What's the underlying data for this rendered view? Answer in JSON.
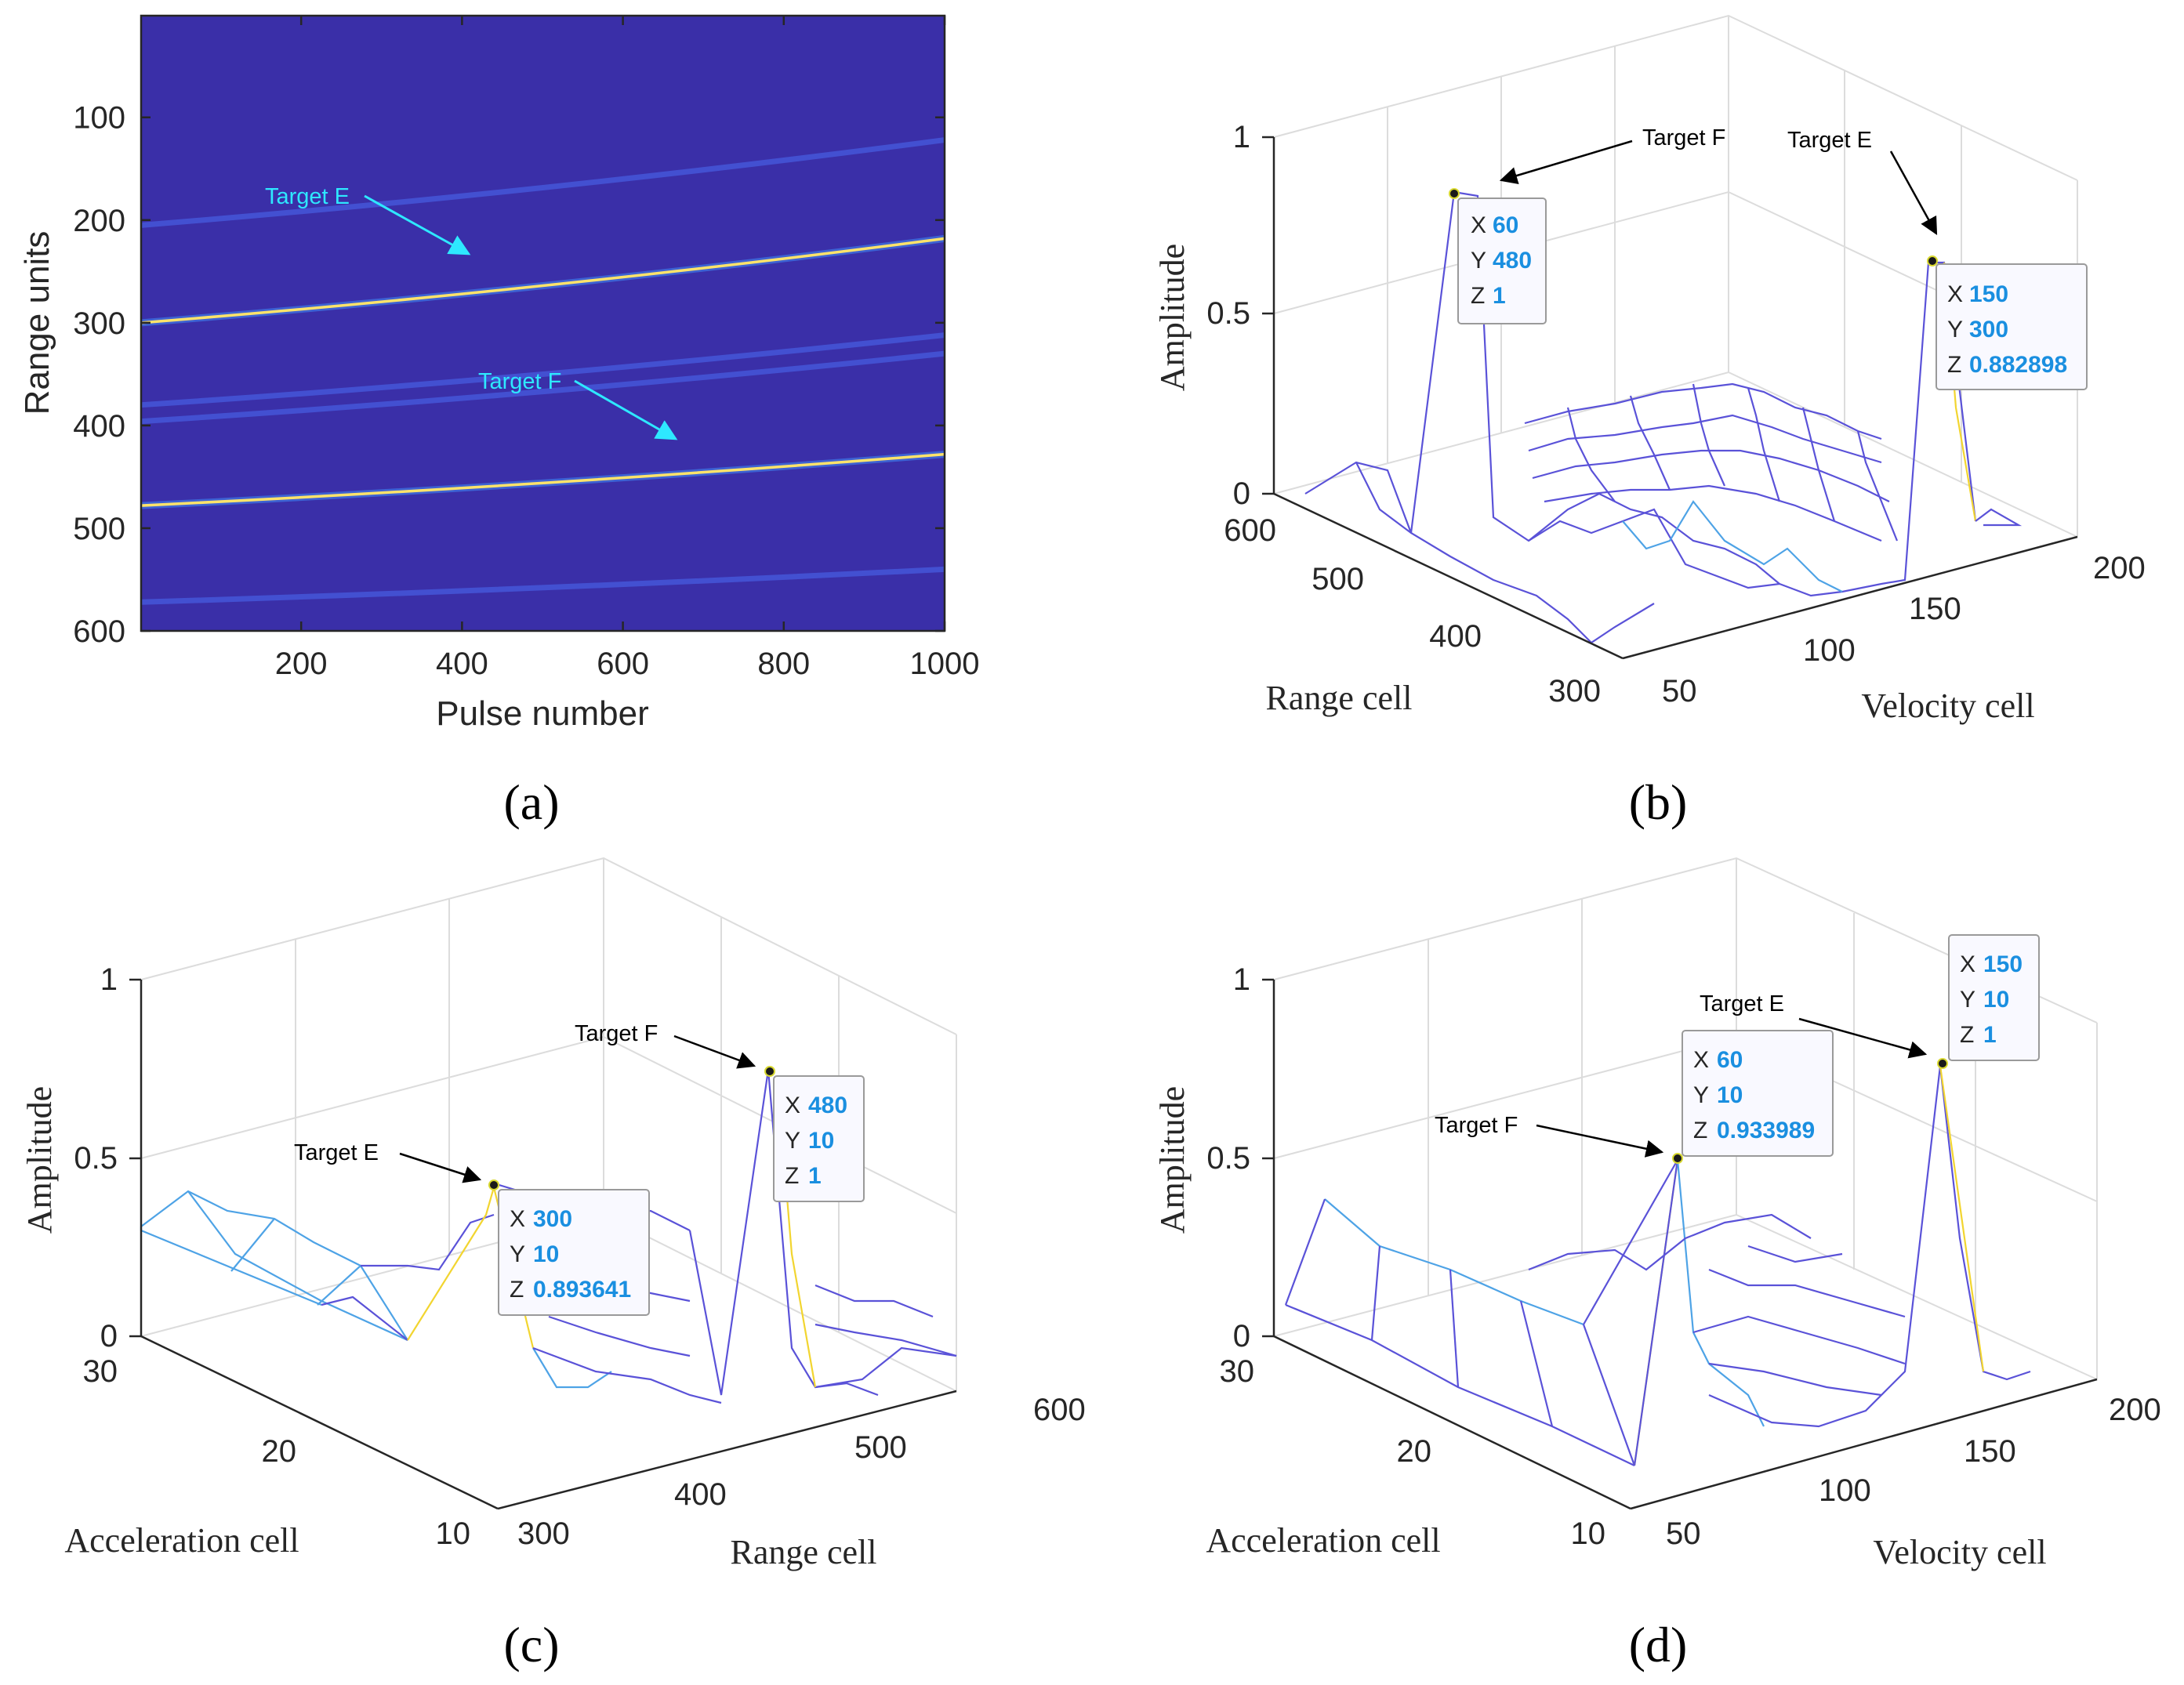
{
  "panels": {
    "a": "(a)",
    "b": "(b)",
    "c": "(c)",
    "d": "(d)"
  },
  "chart_data": [
    {
      "id": "a",
      "type": "heatmap",
      "xlabel": "Pulse number",
      "ylabel": "Range units",
      "xlim": [
        1,
        1000
      ],
      "ylim": [
        600,
        1
      ],
      "y_reversed": true,
      "x_ticks": [
        "200",
        "400",
        "600",
        "800",
        "1000"
      ],
      "y_ticks": [
        "100",
        "200",
        "300",
        "400",
        "500",
        "600"
      ],
      "background_color": "#3a2ea6",
      "tracks": [
        {
          "kind": "bright",
          "color": "#ffe36a",
          "x": [
            1,
            1000
          ],
          "y_start": 300,
          "y_end": 218
        },
        {
          "kind": "bright",
          "color": "#ffe36a",
          "x": [
            1,
            1000
          ],
          "y_start": 478,
          "y_end": 428
        },
        {
          "kind": "faint",
          "color": "#4a6cf2",
          "x": [
            1,
            1000
          ],
          "y_start": 205,
          "y_end": 122
        },
        {
          "kind": "faint",
          "color": "#4a6cf2",
          "x": [
            1,
            1000
          ],
          "y_start": 380,
          "y_end": 312
        },
        {
          "kind": "faint",
          "color": "#4a6cf2",
          "x": [
            1,
            1000
          ],
          "y_start": 396,
          "y_end": 330
        },
        {
          "kind": "faint",
          "color": "#4a6cf2",
          "x": [
            1,
            1000
          ],
          "y_start": 572,
          "y_end": 540
        }
      ],
      "annotations": [
        {
          "text": "Target E",
          "color": "#2ee8ff"
        },
        {
          "text": "Target F",
          "color": "#2ee8ff"
        }
      ]
    },
    {
      "id": "b",
      "type": "surface",
      "xlabel": "Velocity cell",
      "ylabel": "Range cell",
      "zlabel": "Amplitude",
      "x_ticks": [
        "50",
        "100",
        "150",
        "200"
      ],
      "y_ticks": [
        "300",
        "400",
        "500",
        "600"
      ],
      "z_ticks": [
        "0",
        "0.5",
        "1"
      ],
      "zlim": [
        0,
        1
      ],
      "peaks": [
        {
          "label": "Target F",
          "x": 60,
          "y": 480,
          "z": 1,
          "x_text": "60",
          "y_text": "480",
          "z_text": "1"
        },
        {
          "label": "Target E",
          "x": 150,
          "y": 300,
          "z": 0.882898,
          "x_text": "150",
          "y_text": "300",
          "z_text": "0.882898"
        }
      ]
    },
    {
      "id": "c",
      "type": "surface",
      "xlabel": "Range cell",
      "ylabel": "Acceleration cell",
      "zlabel": "Amplitude",
      "x_ticks": [
        "300",
        "400",
        "500",
        "600"
      ],
      "y_ticks": [
        "10",
        "20",
        "30"
      ],
      "z_ticks": [
        "0",
        "0.5",
        "1"
      ],
      "zlim": [
        0,
        1
      ],
      "peaks": [
        {
          "label": "Target E",
          "x": 300,
          "y": 10,
          "z": 0.893641,
          "x_text": "300",
          "y_text": "10",
          "z_text": "0.893641"
        },
        {
          "label": "Target F",
          "x": 480,
          "y": 10,
          "z": 1,
          "x_text": "480",
          "y_text": "10",
          "z_text": "1"
        }
      ]
    },
    {
      "id": "d",
      "type": "surface",
      "xlabel": "Velocity cell",
      "ylabel": "Acceleration cell",
      "zlabel": "Amplitude",
      "x_ticks": [
        "50",
        "100",
        "150",
        "200"
      ],
      "y_ticks": [
        "10",
        "20",
        "30"
      ],
      "z_ticks": [
        "0",
        "0.5",
        "1"
      ],
      "zlim": [
        0,
        1
      ],
      "peaks": [
        {
          "label": "Target F",
          "x": 60,
          "y": 10,
          "z": 0.933989,
          "x_text": "60",
          "y_text": "10",
          "z_text": "0.933989"
        },
        {
          "label": "Target E",
          "x": 150,
          "y": 10,
          "z": 1,
          "x_text": "150",
          "y_text": "10",
          "z_text": "1"
        }
      ]
    }
  ]
}
